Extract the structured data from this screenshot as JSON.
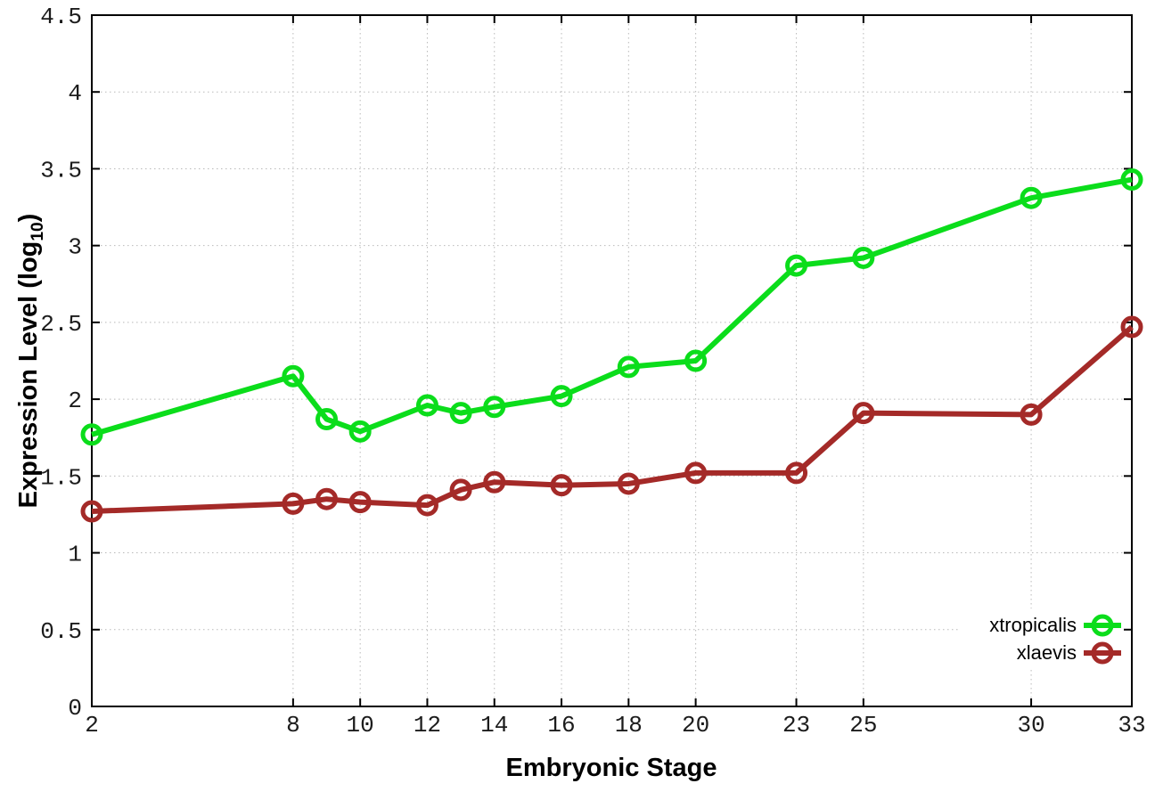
{
  "figure": {
    "xlabel": "Embryonic Stage",
    "ylabel_pre": "Expression Level (log",
    "ylabel_sub": "10",
    "ylabel_post": ")"
  },
  "chart_data": {
    "type": "line",
    "title": "",
    "xlabel": "Embryonic Stage",
    "ylabel": "Expression Level (log10)",
    "x": [
      2,
      8,
      9,
      10,
      12,
      13,
      14,
      16,
      18,
      20,
      23,
      25,
      30,
      33
    ],
    "series": [
      {
        "name": "xtropicalis",
        "color": "#0bdd1b",
        "marker": "open-circle",
        "values": [
          1.77,
          2.15,
          1.87,
          1.79,
          1.96,
          1.91,
          1.95,
          2.02,
          2.21,
          2.25,
          2.87,
          2.92,
          3.31,
          3.43
        ]
      },
      {
        "name": "xlaevis",
        "color": "#a42a28",
        "marker": "open-circle",
        "values": [
          1.27,
          1.32,
          1.35,
          1.33,
          1.31,
          1.41,
          1.46,
          1.44,
          1.45,
          1.52,
          1.52,
          1.91,
          1.9,
          2.47
        ]
      }
    ],
    "xlim": [
      2,
      33
    ],
    "ylim": [
      0,
      4.5
    ],
    "x_ticks": [
      2,
      8,
      10,
      12,
      14,
      16,
      18,
      20,
      23,
      25,
      30,
      33
    ],
    "y_ticks": [
      0,
      0.5,
      1,
      1.5,
      2,
      2.5,
      3,
      3.5,
      4,
      4.5
    ],
    "grid": "dotted",
    "legend_position": "inside-bottom-right",
    "legend_opaque": true
  }
}
